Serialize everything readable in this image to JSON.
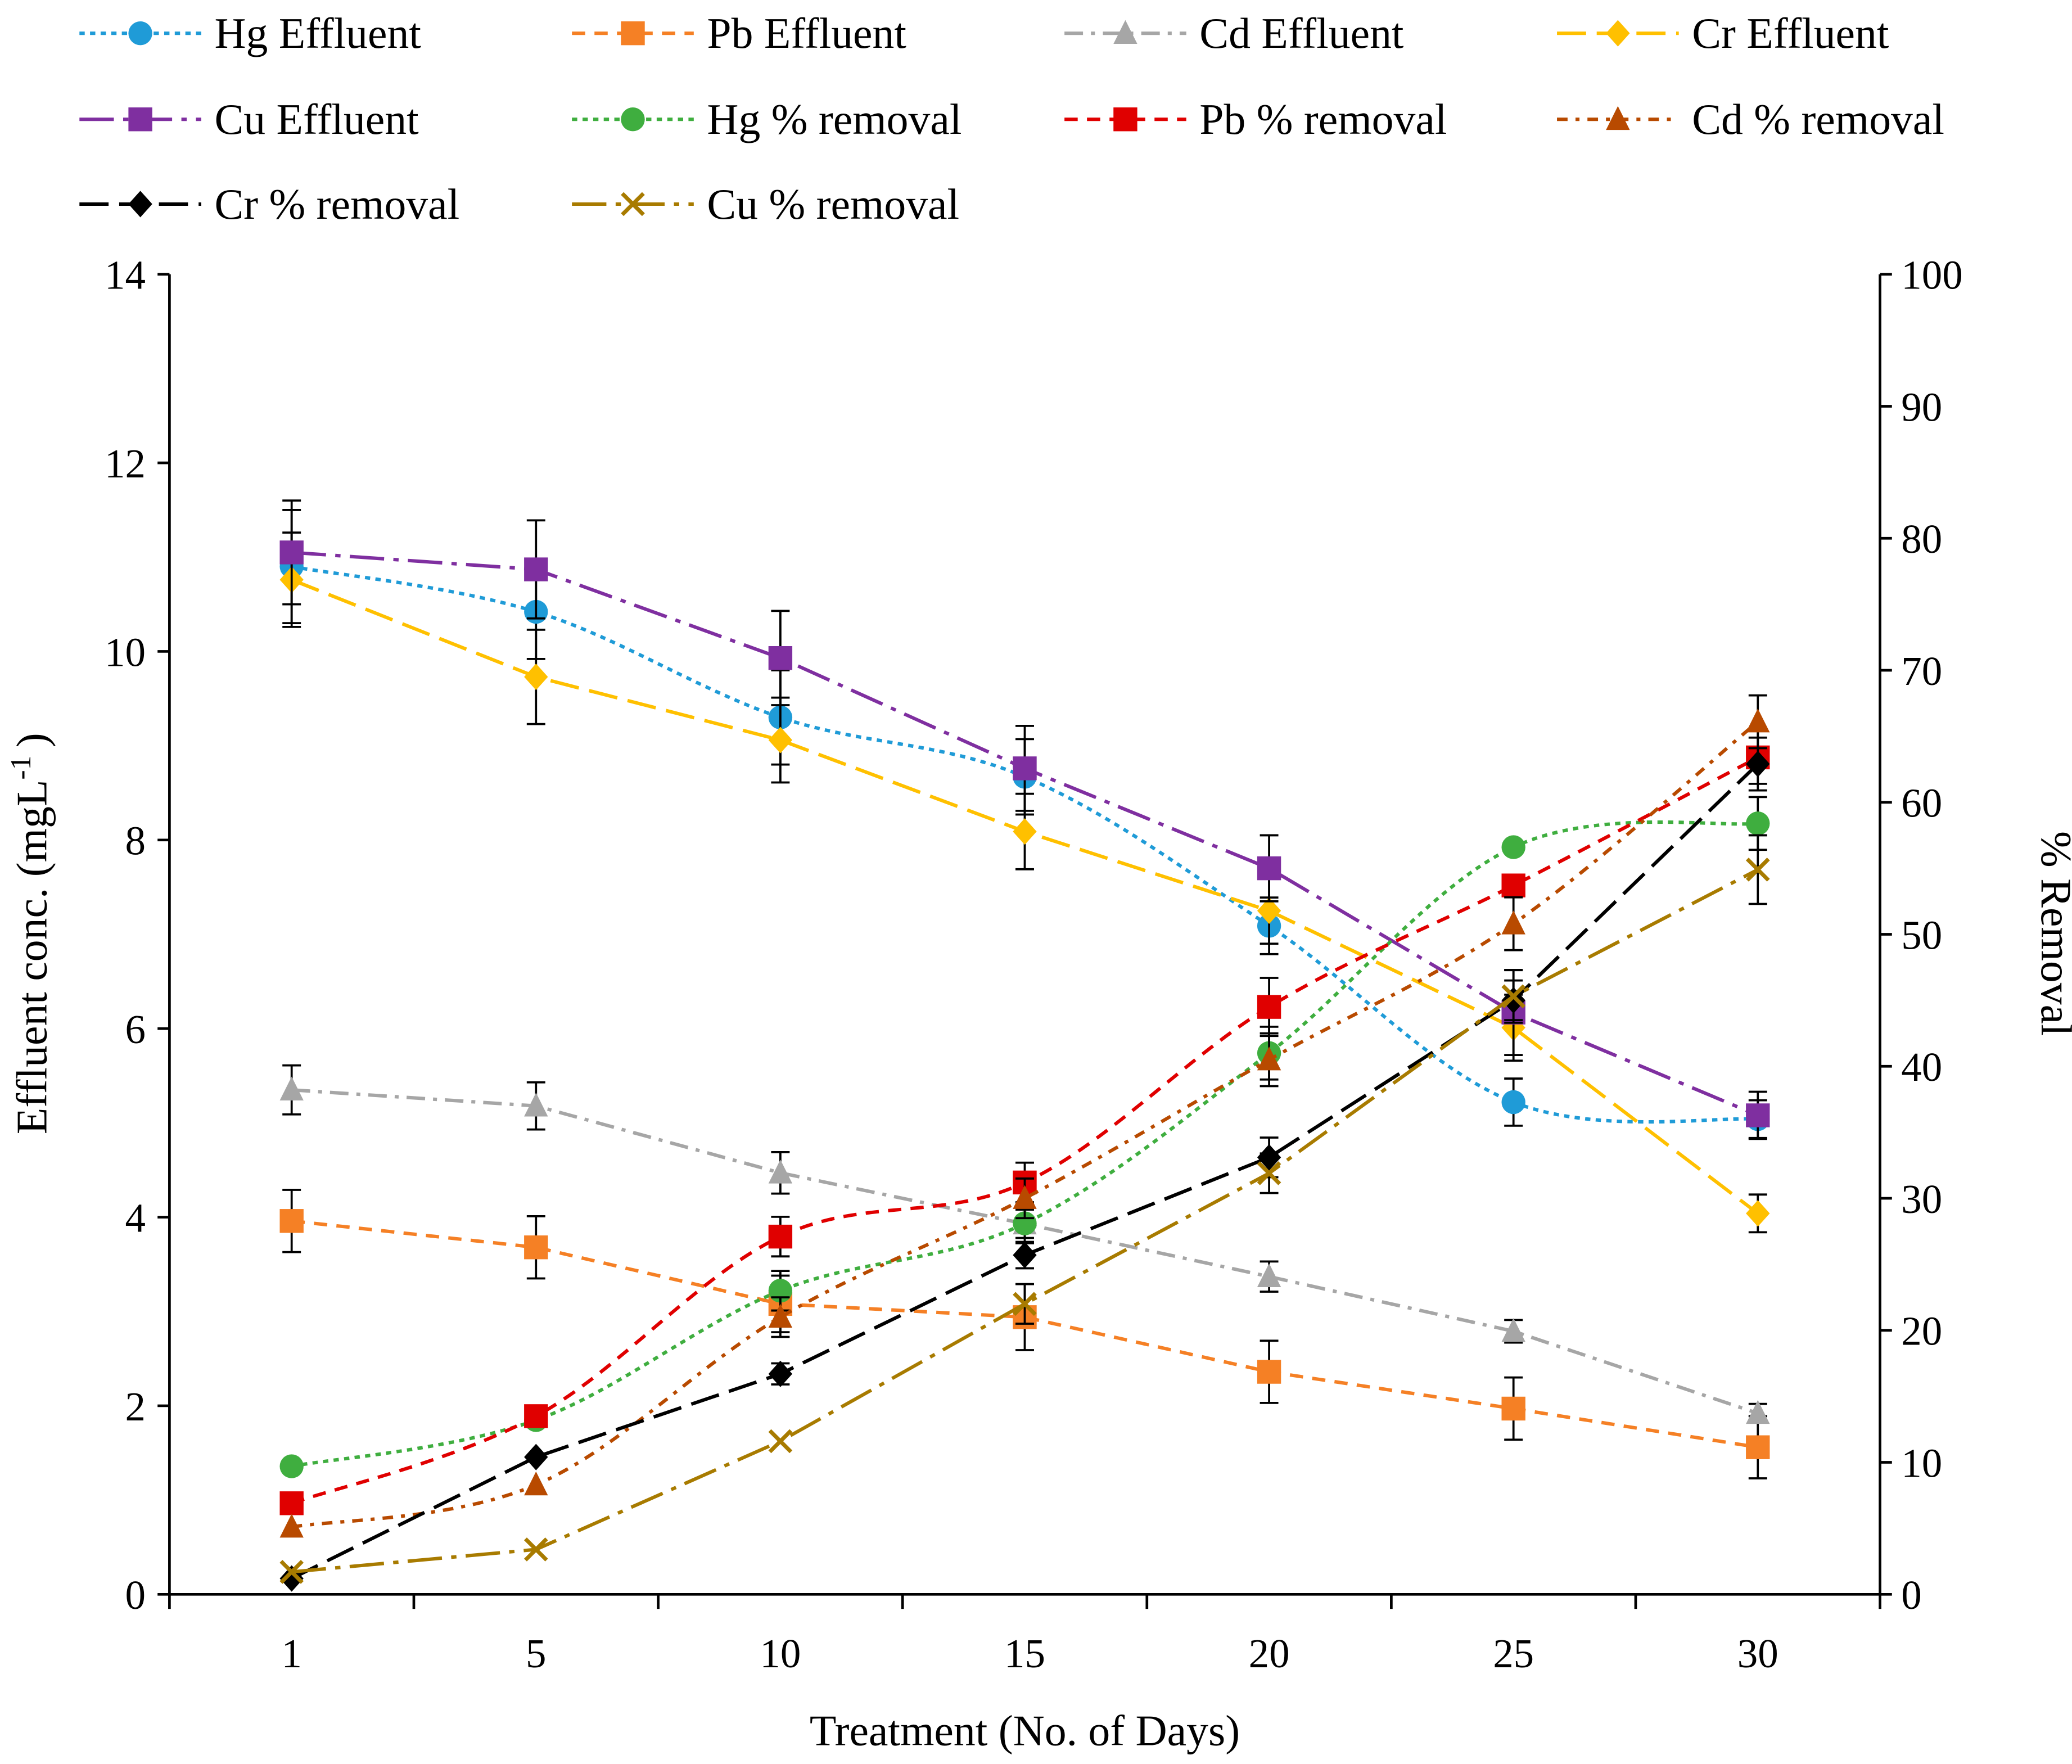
{
  "chart_data": {
    "type": "line",
    "title": "",
    "xlabel": "Treatment (No. of Days)",
    "ylabel_left": "Effluent conc. (mgL",
    "ylabel_left_sup": "-1",
    "ylabel_left_close": ")",
    "ylabel_right": "% Removal",
    "categories": [
      "1",
      "5",
      "10",
      "15",
      "20",
      "25",
      "30"
    ],
    "ylim_left": [
      0,
      14
    ],
    "ylim_right": [
      0,
      100
    ],
    "yticks_left": [
      "0",
      "2",
      "4",
      "6",
      "8",
      "10",
      "12",
      "14"
    ],
    "yticks_right": [
      "0",
      "10",
      "20",
      "30",
      "40",
      "50",
      "60",
      "70",
      "80",
      "90",
      "100"
    ],
    "legend_position": "top",
    "series": [
      {
        "name": "Hg Effluent",
        "axis": "left",
        "color": "#1f9bd7",
        "marker": "circle",
        "dash": "4 4",
        "smooth": true,
        "values": [
          10.9,
          10.42,
          9.3,
          8.67,
          7.09,
          5.22,
          5.04
        ],
        "err": [
          0.6,
          0.5,
          0.5,
          0.4,
          0.3,
          0.25,
          0.2
        ]
      },
      {
        "name": "Pb Effluent",
        "axis": "left",
        "color": "#f58025",
        "marker": "square",
        "dash": "10 7",
        "smooth": false,
        "values": [
          3.96,
          3.68,
          3.08,
          2.94,
          2.36,
          1.97,
          1.56
        ],
        "err": [
          0.33,
          0.33,
          0.3,
          0.35,
          0.33,
          0.33,
          0.33
        ]
      },
      {
        "name": "Cd Effluent",
        "axis": "left",
        "color": "#a6a6a6",
        "marker": "triangle",
        "dash": "14 6 3 6",
        "smooth": false,
        "values": [
          5.35,
          5.18,
          4.47,
          3.93,
          3.37,
          2.79,
          1.92
        ],
        "err": [
          0.26,
          0.25,
          0.22,
          0.15,
          0.16,
          0.12,
          0.1
        ]
      },
      {
        "name": "Cr Effluent",
        "axis": "left",
        "color": "#ffc000",
        "marker": "diamond",
        "dash": "22 8",
        "smooth": false,
        "values": [
          10.76,
          9.73,
          9.06,
          8.09,
          7.25,
          6.01,
          4.04
        ],
        "err": [
          0.5,
          0.5,
          0.45,
          0.4,
          0.35,
          0.35,
          0.2
        ]
      },
      {
        "name": "Cu Effluent",
        "axis": "left",
        "color": "#7f2fa0",
        "marker": "square",
        "dash": "26 7 4 7",
        "smooth": false,
        "values": [
          11.05,
          10.87,
          9.93,
          8.76,
          7.7,
          6.17,
          5.08
        ],
        "err": [
          0.55,
          0.52,
          0.5,
          0.45,
          0.35,
          0.45,
          0.25
        ]
      },
      {
        "name": "Hg % removal",
        "axis": "right",
        "color": "#3fae3f",
        "marker": "circle",
        "dash": "4 4",
        "smooth": true,
        "values": [
          9.7,
          13.2,
          23.0,
          28.1,
          41.0,
          56.6,
          58.4
        ],
        "err": [
          0,
          0,
          1.5,
          1.5,
          2,
          0,
          2
        ]
      },
      {
        "name": "Pb % removal",
        "axis": "right",
        "color": "#e00000",
        "marker": "square",
        "dash": "10 7",
        "smooth": true,
        "values": [
          6.9,
          13.5,
          27.1,
          31.2,
          44.5,
          53.7,
          63.4
        ],
        "err": [
          0,
          0,
          1.5,
          1.5,
          2.2,
          0,
          2
        ]
      },
      {
        "name": "Cd % removal",
        "axis": "right",
        "color": "#b84a00",
        "marker": "triangle",
        "dash": "8 6 3 6",
        "smooth": true,
        "values": [
          5.1,
          8.3,
          21.0,
          30.0,
          40.5,
          50.8,
          66.1
        ],
        "err": [
          0,
          0,
          1.5,
          1.5,
          2,
          2,
          2
        ]
      },
      {
        "name": "Cr % removal",
        "axis": "right",
        "color": "#000000",
        "marker": "diamond",
        "dash": "22 8",
        "smooth": false,
        "values": [
          1.2,
          10.4,
          16.7,
          25.7,
          33.1,
          45.0,
          62.9
        ],
        "err": [
          0,
          0,
          0.8,
          1,
          1.5,
          1.5,
          2
        ]
      },
      {
        "name": "Cu % removal",
        "axis": "right",
        "color": "#a87b00",
        "marker": "x",
        "dash": "26 7 4 7",
        "smooth": false,
        "values": [
          1.7,
          3.4,
          11.6,
          22.0,
          31.9,
          45.3,
          54.9
        ],
        "err": [
          0,
          0,
          0,
          1.5,
          1.5,
          2,
          2.6
        ]
      }
    ]
  }
}
